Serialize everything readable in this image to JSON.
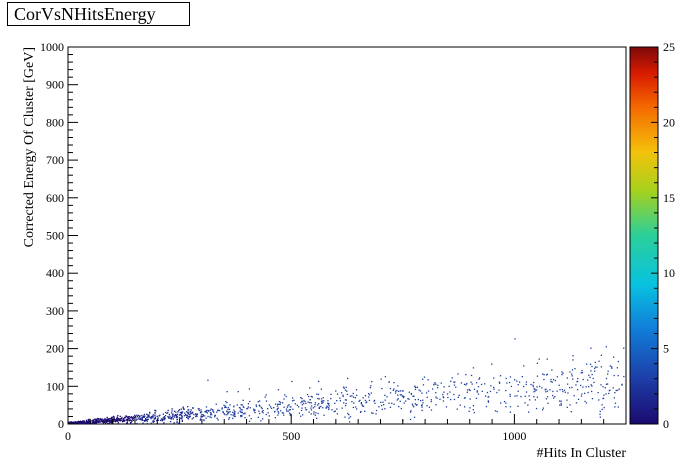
{
  "chart_data": {
    "type": "heatmap",
    "title": "CorVsNHitsEnergy",
    "xlabel": "#Hits In Cluster",
    "ylabel": "Corrected Energy Of Cluster [GeV]",
    "xlim": [
      0,
      1250
    ],
    "ylim": [
      0,
      1000
    ],
    "x_ticks": [
      0,
      500,
      1000
    ],
    "y_ticks": [
      0,
      100,
      200,
      300,
      400,
      500,
      600,
      700,
      800,
      900,
      1000
    ],
    "z_range": [
      0,
      25
    ],
    "z_ticks": [
      0,
      5,
      10,
      15,
      20,
      25
    ],
    "colormap": "rainbow",
    "trend": {
      "slope_gev_per_hit": 0.09,
      "x_max": 1250,
      "point_count": 1400
    },
    "outliers": [
      [
        1000,
        225
      ],
      [
        1170,
        200
      ],
      [
        1130,
        180
      ],
      [
        1050,
        160
      ],
      [
        1180,
        150
      ],
      [
        1170,
        140
      ],
      [
        1105,
        130
      ],
      [
        1175,
        120
      ],
      [
        1140,
        112
      ],
      [
        312,
        115
      ],
      [
        500,
        112
      ],
      [
        560,
        112
      ],
      [
        625,
        120
      ],
      [
        700,
        118
      ],
      [
        718,
        110
      ],
      [
        865,
        110
      ],
      [
        880,
        108
      ],
      [
        890,
        130
      ],
      [
        965,
        110
      ],
      [
        980,
        120
      ],
      [
        1010,
        110
      ],
      [
        1140,
        90
      ],
      [
        1210,
        80
      ],
      [
        1220,
        95
      ],
      [
        1050,
        70
      ],
      [
        1100,
        60
      ],
      [
        1160,
        55
      ],
      [
        1195,
        50
      ],
      [
        1060,
        95
      ],
      [
        540,
        95
      ],
      [
        470,
        90
      ],
      [
        405,
        92
      ],
      [
        380,
        85
      ],
      [
        355,
        85
      ],
      [
        645,
        90
      ]
    ]
  }
}
